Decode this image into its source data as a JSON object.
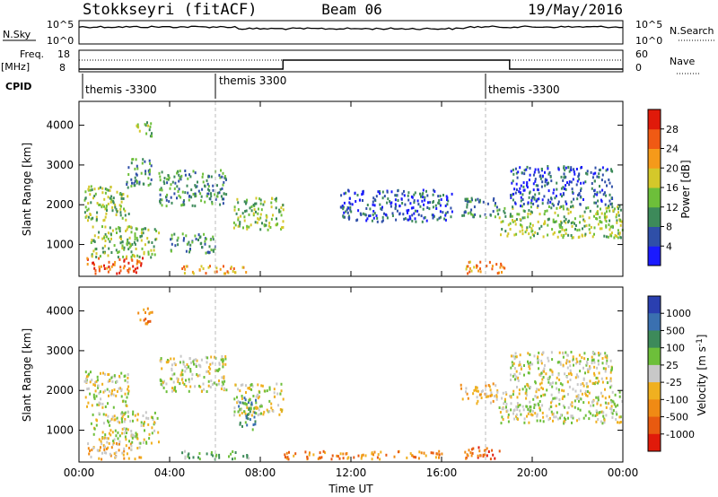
{
  "header": {
    "station": "Stokkseyri (fitACF)",
    "beam": "Beam 06",
    "date": "19/May/2016"
  },
  "nsky": {
    "label": "N.Sky",
    "ticks": [
      "10^5",
      "10^0"
    ],
    "right_label": "N.Search",
    "right_ticks": [
      "10^5",
      "10^0"
    ]
  },
  "freq": {
    "label_line1": "Freq.",
    "label_line2": "[MHz]",
    "ticks": [
      "18",
      "8"
    ],
    "right_label": "Nave",
    "right_ticks": [
      "60",
      "0"
    ],
    "nave_steps": [
      {
        "t0": 0,
        "t1": 9,
        "level": 0
      },
      {
        "t0": 9,
        "t1": 19,
        "level": 60
      },
      {
        "t0": 19,
        "t1": 24,
        "level": 0
      }
    ]
  },
  "cpid": {
    "label": "CPID",
    "segments": [
      {
        "start": 0,
        "text": "themis -3300"
      },
      {
        "start": 6,
        "text": "themis 3300"
      },
      {
        "start": 18,
        "text": "themis -3300"
      }
    ]
  },
  "chart_data": [
    {
      "type": "heatmap",
      "panel": "power",
      "xlabel": "",
      "ylabel": "Slant Range [km]",
      "ylim": [
        200,
        4600
      ],
      "xlim": [
        0,
        24
      ],
      "yticks": [
        "1000",
        "2000",
        "3000",
        "4000"
      ],
      "colorbar_label": "Power [dB]",
      "colorbar_ticks": [
        "4",
        "8",
        "12",
        "16",
        "20",
        "24",
        "28"
      ],
      "colors": [
        "#1a1aff",
        "#2f4fa8",
        "#3d8a5a",
        "#6dbf3a",
        "#d4c82a",
        "#f59a1a",
        "#f05a14",
        "#e01a0a"
      ],
      "regions": [
        {
          "t0": 0.2,
          "t1": 2.2,
          "r0": 1600,
          "r1": 2500,
          "level": 3
        },
        {
          "t0": 0.3,
          "t1": 2.8,
          "r0": 300,
          "r1": 700,
          "level": 6
        },
        {
          "t0": 0.5,
          "t1": 3.5,
          "r0": 700,
          "r1": 1500,
          "level": 3
        },
        {
          "t0": 2.0,
          "t1": 3.2,
          "r0": 2500,
          "r1": 3200,
          "level": 2
        },
        {
          "t0": 4.5,
          "t1": 7.5,
          "r0": 300,
          "r1": 500,
          "level": 5
        },
        {
          "t0": 4.0,
          "t1": 6.0,
          "r0": 800,
          "r1": 1300,
          "level": 2
        },
        {
          "t0": 3.5,
          "t1": 6.5,
          "r0": 2000,
          "r1": 2900,
          "level": 2
        },
        {
          "t0": 6.8,
          "t1": 9.0,
          "r0": 1400,
          "r1": 2200,
          "level": 3
        },
        {
          "t0": 2.5,
          "t1": 3.2,
          "r0": 3700,
          "r1": 4100,
          "level": 3
        },
        {
          "t0": 17.0,
          "t1": 18.8,
          "r0": 300,
          "r1": 600,
          "level": 5
        },
        {
          "t0": 18.5,
          "t1": 24.0,
          "r0": 1200,
          "r1": 2000,
          "level": 3
        },
        {
          "t0": 16.8,
          "t1": 18.5,
          "r0": 1700,
          "r1": 2200,
          "level": 2
        },
        {
          "t0": 19.0,
          "t1": 23.5,
          "r0": 2000,
          "r1": 3000,
          "level": 1
        },
        {
          "t0": 11.5,
          "t1": 16.5,
          "r0": 1600,
          "r1": 2400,
          "level": 1
        }
      ]
    },
    {
      "type": "heatmap",
      "panel": "velocity",
      "xlabel": "Time UT",
      "ylabel": "Slant Range [km]",
      "ylim": [
        200,
        4600
      ],
      "xlim": [
        0,
        24
      ],
      "xticks": [
        "00:00",
        "04:00",
        "08:00",
        "12:00",
        "16:00",
        "20:00",
        "00:00"
      ],
      "yticks": [
        "1000",
        "2000",
        "3000",
        "4000"
      ],
      "colorbar_label": "Velocity [m s^-1]",
      "colorbar_ticks": [
        "1000",
        "500",
        "100",
        "25",
        "-25",
        "-100",
        "-500",
        "-1000"
      ],
      "colors": [
        "#2a3fb0",
        "#3a70b0",
        "#3d8a5a",
        "#6dbf3a",
        "#c8c8c8",
        "#f0b020",
        "#f08a14",
        "#e85a10",
        "#e01a0a"
      ],
      "regions": [
        {
          "t0": 0.2,
          "t1": 2.2,
          "r0": 1600,
          "r1": 2500,
          "level": 4
        },
        {
          "t0": 0.3,
          "t1": 2.8,
          "r0": 300,
          "r1": 700,
          "level": 5
        },
        {
          "t0": 0.5,
          "t1": 3.5,
          "r0": 700,
          "r1": 1500,
          "level": 4
        },
        {
          "t0": 4.5,
          "t1": 7.5,
          "r0": 300,
          "r1": 500,
          "level": 3
        },
        {
          "t0": 3.5,
          "t1": 6.5,
          "r0": 2000,
          "r1": 2900,
          "level": 4
        },
        {
          "t0": 6.8,
          "t1": 9.0,
          "r0": 1400,
          "r1": 2200,
          "level": 4
        },
        {
          "t0": 7.0,
          "t1": 7.8,
          "r0": 1000,
          "r1": 1900,
          "level": 2
        },
        {
          "t0": 2.5,
          "t1": 3.2,
          "r0": 3700,
          "r1": 4100,
          "level": 6
        },
        {
          "t0": 17.0,
          "t1": 18.8,
          "r0": 300,
          "r1": 600,
          "level": 7
        },
        {
          "t0": 18.5,
          "t1": 24.0,
          "r0": 1200,
          "r1": 2000,
          "level": 4
        },
        {
          "t0": 16.8,
          "t1": 18.5,
          "r0": 1700,
          "r1": 2200,
          "level": 5
        },
        {
          "t0": 19.0,
          "t1": 23.5,
          "r0": 2000,
          "r1": 3000,
          "level": 4
        },
        {
          "t0": 9.0,
          "t1": 16.0,
          "r0": 300,
          "r1": 500,
          "level": 6
        }
      ]
    }
  ]
}
